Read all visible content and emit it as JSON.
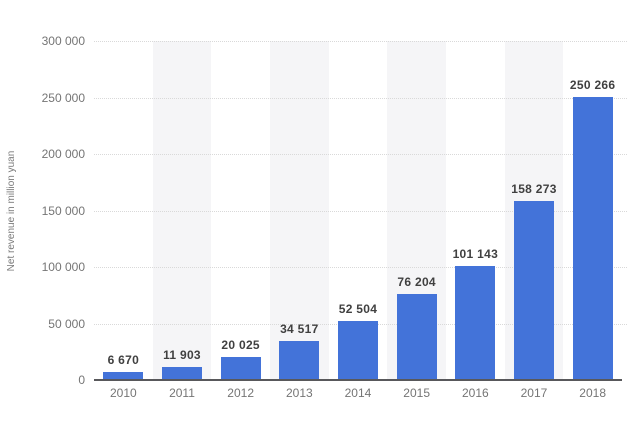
{
  "chart_data": {
    "type": "bar",
    "title": "",
    "categories": [
      "2010",
      "2011",
      "2012",
      "2013",
      "2014",
      "2015",
      "2016",
      "2017",
      "2018"
    ],
    "series": [
      {
        "name": "Net revenue",
        "values": [
          6670,
          11903,
          20025,
          34517,
          52504,
          76204,
          101143,
          158273,
          250266
        ]
      }
    ],
    "value_labels": [
      "6 670",
      "11 903",
      "20 025",
      "34 517",
      "52 504",
      "76 204",
      "101 143",
      "158 273",
      "250 266"
    ],
    "xlabel": "",
    "ylabel": "Net revenue in million yuan",
    "ylim": [
      0,
      300000
    ],
    "yticks": [
      {
        "value": 0,
        "label": "0"
      },
      {
        "value": 50000,
        "label": "50 000"
      },
      {
        "value": 100000,
        "label": "100 000"
      },
      {
        "value": 150000,
        "label": "150 000"
      },
      {
        "value": 200000,
        "label": "200 000"
      },
      {
        "value": 250000,
        "label": "250 000"
      },
      {
        "value": 300000,
        "label": "300 000"
      }
    ],
    "grid": "horizontal-dotted",
    "legend": "none",
    "plot_background": "alternating vertical column stripes behind odd categories (2011, 2013, 2015, 2017)",
    "colors": {
      "bar": "#4373d9",
      "value_label": "#404040",
      "tick_label": "#757575",
      "axis_line": "#58585b",
      "gridline": "#d9d9d9",
      "stripe": "#f5f5f7",
      "background": "#ffffff"
    }
  }
}
